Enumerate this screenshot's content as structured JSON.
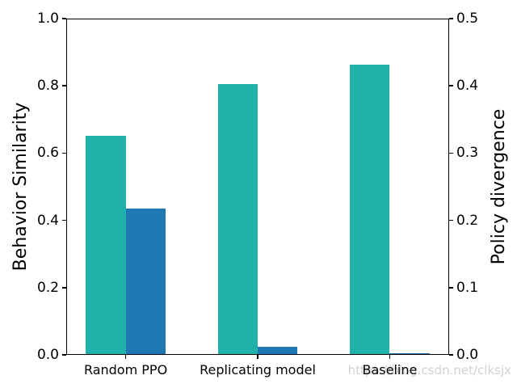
{
  "watermark": "https://blog.csdn.net/clksjx",
  "chart_data": {
    "type": "bar",
    "categories": [
      "Random PPO",
      "Replicating model",
      "Baseline"
    ],
    "series": [
      {
        "name": "Behavior Similarity",
        "axis": "left",
        "color": "#20b2aa",
        "values": [
          0.651,
          0.805,
          0.862
        ]
      },
      {
        "name": "Policy divergence",
        "axis": "right",
        "color": "#1f77b4",
        "values": [
          0.217,
          0.012,
          0.003
        ]
      }
    ],
    "left_axis": {
      "label": "Behavior Similarity",
      "min": 0.0,
      "max": 1.0,
      "tick_labels": [
        "0.0",
        "0.2",
        "0.4",
        "0.6",
        "0.8",
        "1.0"
      ],
      "tick_values": [
        0.0,
        0.2,
        0.4,
        0.6,
        0.8,
        1.0
      ]
    },
    "right_axis": {
      "label": "Policy divergence",
      "min": 0.0,
      "max": 0.5,
      "tick_labels": [
        "0.0",
        "0.1",
        "0.2",
        "0.3",
        "0.4",
        "0.5"
      ],
      "tick_values": [
        0.0,
        0.1,
        0.2,
        0.3,
        0.4,
        0.5
      ]
    },
    "title": "",
    "xlabel": "",
    "grid": false,
    "legend": "none",
    "colors": {
      "frame": "#000000",
      "watermark": "#d2d2d2",
      "background": "#ffffff"
    }
  }
}
